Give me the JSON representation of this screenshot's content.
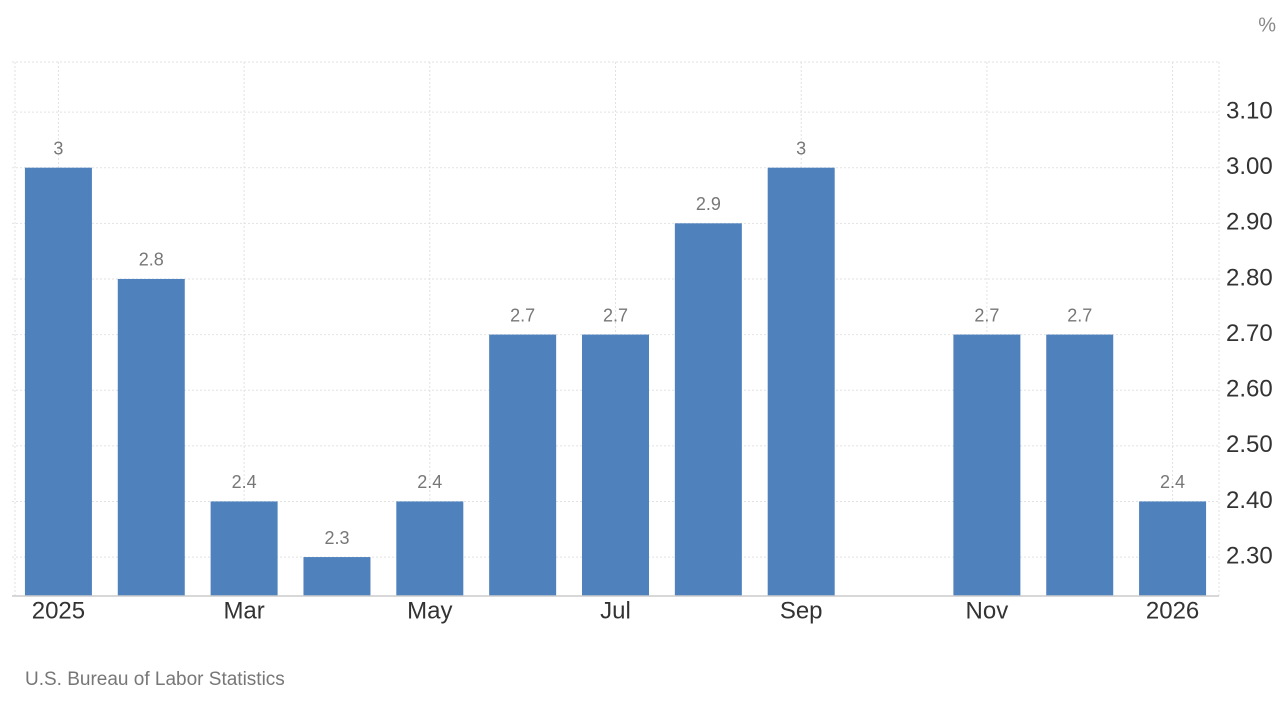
{
  "chart_data": {
    "type": "bar",
    "unit": "%",
    "source": "U.S. Bureau of Labor Statistics",
    "categories": [
      "2025",
      null,
      "Mar",
      null,
      "May",
      null,
      "Jul",
      null,
      "Sep",
      null,
      "Nov",
      null,
      "2026"
    ],
    "values": [
      3,
      2.8,
      2.4,
      2.3,
      2.4,
      2.7,
      2.7,
      2.9,
      3,
      null,
      2.7,
      2.7,
      2.4
    ],
    "color": "#4f81bd",
    "ylim": [
      2.23,
      3.19
    ],
    "yticks": [
      {
        "value": 2.3,
        "label": "2.30"
      },
      {
        "value": 2.4,
        "label": "2.40"
      },
      {
        "value": 2.5,
        "label": "2.50"
      },
      {
        "value": 2.6,
        "label": "2.60"
      },
      {
        "value": 2.7,
        "label": "2.70"
      },
      {
        "value": 2.8,
        "label": "2.80"
      },
      {
        "value": 2.9,
        "label": "2.90"
      },
      {
        "value": 3.0,
        "label": "3.00"
      },
      {
        "value": 3.1,
        "label": "3.10"
      }
    ],
    "grid": true
  }
}
